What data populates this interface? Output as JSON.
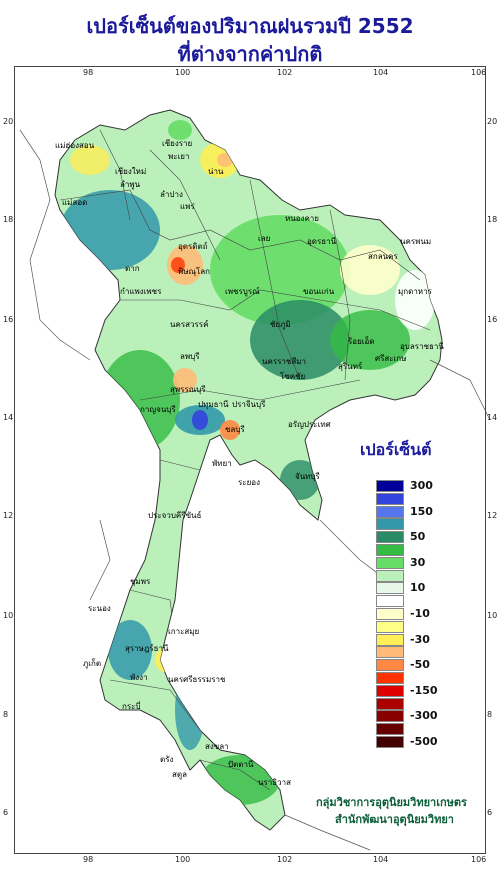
{
  "title": {
    "line1": "เปอร์เซ็นต์ของปริมาณฝนรวมปี 2552",
    "line2": "ที่ต่างจากค่าปกติ"
  },
  "axis": {
    "longitude_ticks": [
      "98",
      "100",
      "102",
      "104",
      "106"
    ],
    "latitude_ticks": [
      "20",
      "18",
      "16",
      "14",
      "12",
      "10",
      "8",
      "6"
    ]
  },
  "legend": {
    "title": "เปอร์เซ็นต์",
    "items": [
      {
        "label": "300",
        "color": "#000099"
      },
      {
        "label": "",
        "color": "#3344dd"
      },
      {
        "label": "150",
        "color": "#5577ee"
      },
      {
        "label": "",
        "color": "#3399aa"
      },
      {
        "label": "50",
        "color": "#2a8c66"
      },
      {
        "label": "",
        "color": "#33bb44"
      },
      {
        "label": "30",
        "color": "#66dd66"
      },
      {
        "label": "",
        "color": "#bbf0bb"
      },
      {
        "label": "10",
        "color": "#e8f8e8"
      },
      {
        "label": "",
        "color": "#ffffff"
      },
      {
        "label": "-10",
        "color": "#ffffcc"
      },
      {
        "label": "",
        "color": "#ffff88"
      },
      {
        "label": "-30",
        "color": "#ffee55"
      },
      {
        "label": "",
        "color": "#ffbb77"
      },
      {
        "label": "-50",
        "color": "#ff8844"
      },
      {
        "label": "",
        "color": "#ff3300"
      },
      {
        "label": "-150",
        "color": "#dd0000"
      },
      {
        "label": "",
        "color": "#aa0000"
      },
      {
        "label": "-300",
        "color": "#880000"
      },
      {
        "label": "",
        "color": "#660000"
      },
      {
        "label": "-500",
        "color": "#440000"
      }
    ]
  },
  "credit": {
    "line1": "กลุ่มวิชาการอุตุนิยมวิทยาเกษตร",
    "line2": "สำนักพัฒนาอุตุนิยมวิทยา"
  },
  "places": [
    "เชียงราย",
    "แม่ฮ่องสอน",
    "เชียงใหม่",
    "พะเยา",
    "ลำพูน",
    "น่าน",
    "ลำปาง",
    "แพร่",
    "แม่สอด",
    "ตาก",
    "อุตรดิตถ์",
    "พิษณุโลก",
    "กำแพงเพชร",
    "หนองคาย",
    "เลย",
    "อุดรธานี",
    "สกลนคร",
    "นครพนม",
    "มุกดาหาร",
    "ขอนแก่น",
    "ชัยภูมิ",
    "นครสวรรค์",
    "เพชรบูรณ์",
    "ร้อยเอ็ด",
    "อุบลราชธานี",
    "ศรีสะเกษ",
    "สุรินทร์",
    "นครราชสีมา",
    "โชคชัย",
    "ลพบุรี",
    "สุพรรณบุรี",
    "กาญจนบุรี",
    "ปทุมธานี",
    "ปราจีนบุรี",
    "อรัญประเทศ",
    "ชลบุรี",
    "พัทยา",
    "ระยอง",
    "จันทบุรี",
    "ประจวบคีรีขันธ์",
    "ชุมพร",
    "ระนอง",
    "สุราษฎร์ธานี",
    "เกาะสมุย",
    "ภูเก็ต",
    "พังงา",
    "นครศรีธรรมราช",
    "กระบี่",
    "ตรัง",
    "สงขลา",
    "ปัตตานี",
    "สตูล",
    "นราธิวาส"
  ]
}
